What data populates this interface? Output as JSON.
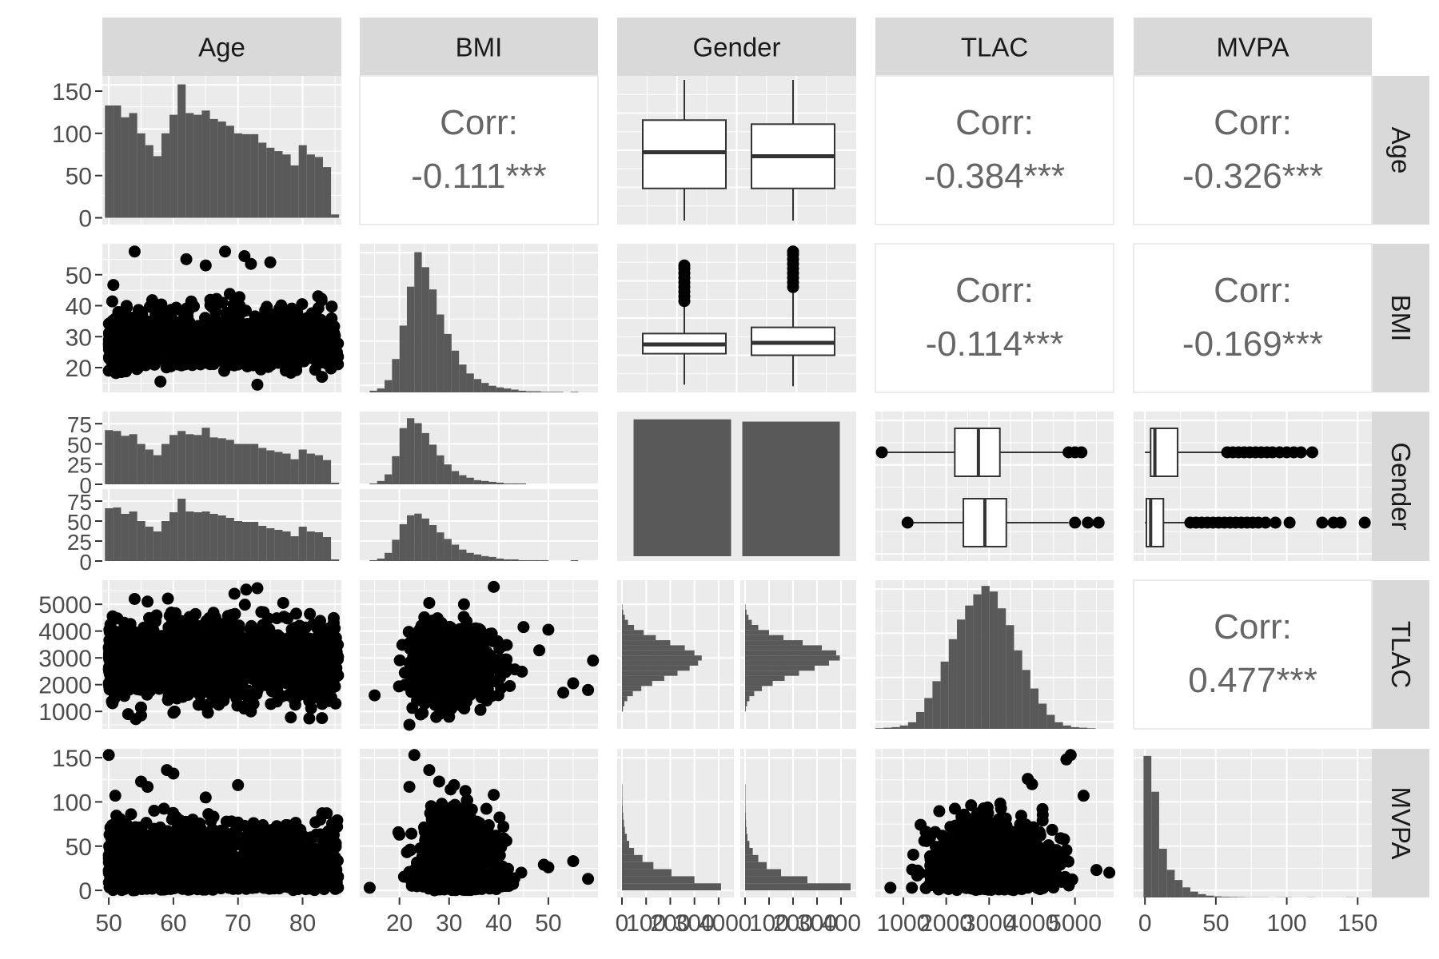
{
  "chart_data": {
    "type": "scatterplot-matrix",
    "variables": [
      "Age",
      "BMI",
      "Gender",
      "TLAC",
      "MVPA"
    ],
    "strip_labels": {
      "columns": [
        "Age",
        "BMI",
        "Gender",
        "TLAC",
        "MVPA"
      ],
      "rows": [
        "Age",
        "BMI",
        "Gender",
        "TLAC",
        "MVPA"
      ]
    },
    "axes": {
      "Age": {
        "range": [
          49,
          86
        ],
        "ticks": [
          "50",
          "60",
          "70",
          "80"
        ],
        "tick_values": [
          50,
          60,
          70,
          80
        ]
      },
      "BMI": {
        "range": [
          12,
          60
        ],
        "ticks": [
          "20",
          "30",
          "40",
          "50"
        ],
        "tick_values": [
          20,
          30,
          40,
          50
        ]
      },
      "TLAC": {
        "range": [
          350,
          5900
        ],
        "ticks": [
          "1000",
          "2000",
          "3000",
          "4000",
          "5000"
        ],
        "tick_values": [
          1000,
          2000,
          3000,
          4000,
          5000
        ]
      },
      "MVPA": {
        "range": [
          -8,
          160
        ],
        "ticks": [
          "0",
          "50",
          "100",
          "150"
        ],
        "tick_values": [
          0,
          50,
          100,
          150
        ]
      },
      "Gender_count_bottom": {
        "range": [
          0,
          450
        ],
        "ticks": [
          "0",
          "100",
          "200",
          "300",
          "400"
        ],
        "tick_values": [
          0,
          100,
          200,
          300,
          400
        ]
      }
    },
    "left_axis_ticks": {
      "Age_row_count": {
        "range": [
          -8,
          168
        ],
        "ticks": [
          "0",
          "50",
          "100",
          "150"
        ],
        "tick_values": [
          0,
          50,
          100,
          150
        ]
      },
      "Gender_row_count": {
        "range": [
          0,
          90
        ],
        "ticks": [
          "0",
          "25",
          "50",
          "75"
        ],
        "tick_values": [
          0,
          25,
          50,
          75
        ]
      }
    },
    "correlations": [
      {
        "row": "Age",
        "col": "BMI",
        "label": "Corr:",
        "value": "-0.111***"
      },
      {
        "row": "Age",
        "col": "TLAC",
        "label": "Corr:",
        "value": "-0.384***"
      },
      {
        "row": "Age",
        "col": "MVPA",
        "label": "Corr:",
        "value": "-0.326***"
      },
      {
        "row": "BMI",
        "col": "TLAC",
        "label": "Corr:",
        "value": "-0.114***"
      },
      {
        "row": "BMI",
        "col": "MVPA",
        "label": "Corr:",
        "value": "-0.169***"
      },
      {
        "row": "TLAC",
        "col": "MVPA",
        "label": "Corr:",
        "value": "0.477***"
      }
    ],
    "histograms": {
      "Age": {
        "start": 49.4,
        "binwidth": 1.25,
        "counts": [
          133,
          133,
          119,
          124,
          100,
          86,
          73,
          100,
          122,
          158,
          124,
          122,
          127,
          117,
          114,
          109,
          100,
          99,
          99,
          89,
          83,
          79,
          75,
          62,
          86,
          75,
          72,
          60,
          4
        ]
      },
      "BMI": {
        "start": 14,
        "binwidth": 1.5,
        "counts": [
          3,
          7,
          22,
          60,
          120,
          190,
          252,
          225,
          185,
          140,
          105,
          75,
          50,
          34,
          24,
          17,
          12,
          9,
          7,
          5,
          3,
          2,
          2,
          1,
          1,
          1,
          0,
          1,
          0
        ]
      },
      "TLAC": {
        "start": 350,
        "binwidth": 190,
        "counts": [
          1,
          2,
          3,
          6,
          12,
          30,
          55,
          85,
          120,
          160,
          195,
          220,
          240,
          255,
          245,
          215,
          185,
          140,
          105,
          72,
          45,
          25,
          12,
          6,
          3,
          2,
          1
        ]
      },
      "MVPA": {
        "start": -1,
        "binwidth": 5.5,
        "counts": [
          770,
          575,
          265,
          150,
          95,
          55,
          32,
          18,
          10,
          6,
          4,
          3,
          2,
          1,
          1,
          1,
          0,
          1,
          1,
          0,
          0,
          1,
          0,
          0,
          0,
          0,
          1
        ]
      },
      "Age_by_gender": {
        "start": 49.4,
        "binwidth": 1.25,
        "group1": [
          67,
          66,
          60,
          62,
          50,
          43,
          36,
          50,
          61,
          66,
          62,
          61,
          70,
          58,
          57,
          55,
          50,
          50,
          50,
          45,
          42,
          40,
          38,
          31,
          43,
          38,
          36,
          30,
          2
        ],
        "group2": [
          66,
          67,
          59,
          62,
          50,
          43,
          37,
          50,
          61,
          78,
          62,
          61,
          62,
          59,
          57,
          54,
          50,
          49,
          49,
          44,
          41,
          39,
          37,
          31,
          43,
          37,
          36,
          30,
          2
        ]
      },
      "BMI_by_gender": {
        "start": 14,
        "binwidth": 1.5,
        "group1": [
          1,
          4,
          12,
          34,
          68,
          80,
          74,
          62,
          48,
          35,
          24,
          16,
          11,
          8,
          5,
          4,
          3,
          2,
          1,
          1,
          1,
          0,
          0,
          0,
          0,
          0,
          0,
          0,
          0
        ],
        "group2": [
          1,
          3,
          10,
          26,
          45,
          56,
          58,
          52,
          44,
          35,
          27,
          20,
          14,
          10,
          8,
          6,
          5,
          3,
          2,
          2,
          1,
          1,
          1,
          1,
          0,
          0,
          0,
          1,
          0
        ]
      },
      "TLAC_by_gender": {
        "start": 1000,
        "binwidth": 190,
        "group1": [
          4,
          10,
          22,
          45,
          80,
          125,
          175,
          230,
          280,
          315,
          330,
          300,
          260,
          200,
          140,
          90,
          50,
          25,
          12,
          5,
          2
        ],
        "group2": [
          3,
          8,
          18,
          38,
          70,
          115,
          165,
          225,
          290,
          350,
          395,
          380,
          320,
          240,
          160,
          100,
          55,
          28,
          14,
          6,
          2
        ]
      },
      "MVPA_by_gender": {
        "start": 0,
        "binwidth": 8,
        "group1": [
          410,
          300,
          205,
          130,
          85,
          50,
          30,
          20,
          12,
          8,
          5,
          3,
          2,
          1,
          1
        ],
        "group2": [
          440,
          260,
          150,
          90,
          55,
          32,
          18,
          10,
          6,
          4,
          3,
          2,
          1,
          1,
          1
        ]
      }
    },
    "gender_bars": [
      {
        "group": "1",
        "count": 1025
      },
      {
        "group": "2",
        "count": 1008
      }
    ],
    "boxplots": {
      "Age_by_gender": [
        {
          "group": "1",
          "min": 50,
          "q1": 58,
          "median": 67,
          "q3": 75,
          "max": 85
        },
        {
          "group": "2",
          "min": 50,
          "q1": 58,
          "median": 66,
          "q3": 74,
          "max": 85
        }
      ],
      "BMI_by_gender": [
        {
          "group": "1",
          "min": 14.5,
          "q1": 24.5,
          "median": 27.5,
          "q3": 31,
          "max": 40.5,
          "outliers": [
            41.5,
            43,
            44.5,
            46,
            47.5,
            49,
            50.5,
            52,
            53
          ]
        },
        {
          "group": "2",
          "min": 14,
          "q1": 24,
          "median": 28,
          "q3": 33,
          "max": 45,
          "outliers": [
            46,
            47.5,
            49,
            50.5,
            52,
            53.5,
            55,
            56.5,
            57.5
          ]
        }
      ],
      "TLAC_by_gender": [
        {
          "group": "1",
          "min": 500,
          "q1": 2200,
          "median": 2750,
          "q3": 3250,
          "max": 4750,
          "outliers": [
            500,
            4850,
            5000,
            5150
          ]
        },
        {
          "group": "2",
          "min": 1100,
          "q1": 2400,
          "median": 2900,
          "q3": 3400,
          "max": 4850,
          "outliers": [
            1100,
            5000,
            5300,
            5550
          ]
        }
      ],
      "MVPA_by_gender": [
        {
          "group": "1",
          "min": 0,
          "q1": 4,
          "median": 7,
          "q3": 23,
          "max": 56,
          "outliers": [
            58,
            62,
            66,
            70,
            74,
            78,
            82,
            86,
            90,
            95,
            100,
            105,
            110,
            118
          ]
        },
        {
          "group": "2",
          "min": 0,
          "q1": 1,
          "median": 4,
          "q3": 13,
          "max": 30,
          "outliers": [
            32,
            36,
            40,
            44,
            48,
            52,
            56,
            60,
            64,
            68,
            72,
            76,
            80,
            85,
            92,
            102,
            125,
            133,
            138,
            155
          ]
        }
      ]
    },
    "scatter_pairs": [
      {
        "x": "Age",
        "y": "BMI"
      },
      {
        "x": "Age",
        "y": "TLAC"
      },
      {
        "x": "Age",
        "y": "MVPA"
      },
      {
        "x": "BMI",
        "y": "TLAC"
      },
      {
        "x": "BMI",
        "y": "MVPA"
      },
      {
        "x": "TLAC",
        "y": "MVPA"
      }
    ],
    "scatter_extreme_points": {
      "Age_BMI": [
        [
          54,
          57.5
        ],
        [
          68,
          57.5
        ],
        [
          71,
          56
        ],
        [
          72,
          53.5
        ],
        [
          65,
          53
        ],
        [
          75,
          54
        ],
        [
          62,
          55
        ],
        [
          73,
          14.5
        ],
        [
          58,
          15.5
        ],
        [
          83,
          17
        ],
        [
          50,
          19
        ]
      ],
      "Age_TLAC": [
        [
          73,
          5600
        ],
        [
          77,
          5050
        ],
        [
          79,
          4650
        ],
        [
          54,
          5200
        ],
        [
          56,
          5100
        ],
        [
          83,
          750
        ],
        [
          53,
          900
        ],
        [
          55,
          850
        ],
        [
          72,
          1000
        ],
        [
          60,
          950
        ]
      ],
      "Age_MVPA": [
        [
          50,
          153
        ],
        [
          59,
          136
        ],
        [
          60,
          132
        ],
        [
          55,
          123
        ],
        [
          56,
          117
        ],
        [
          70,
          119
        ],
        [
          51,
          107
        ],
        [
          82,
          77
        ],
        [
          84,
          67
        ],
        [
          65,
          105
        ]
      ],
      "BMI_TLAC": [
        [
          39,
          5650
        ],
        [
          33,
          5000
        ],
        [
          26,
          5050
        ],
        [
          45,
          4150
        ],
        [
          50,
          4050
        ],
        [
          55,
          2050
        ],
        [
          58,
          1800
        ],
        [
          59,
          2900
        ],
        [
          53,
          1700
        ],
        [
          22,
          500
        ],
        [
          30,
          800
        ],
        [
          15,
          1600
        ]
      ],
      "BMI_MVPA": [
        [
          23,
          153
        ],
        [
          26,
          136
        ],
        [
          28,
          123
        ],
        [
          31,
          119
        ],
        [
          39,
          108
        ],
        [
          22,
          117
        ],
        [
          20,
          63
        ],
        [
          50,
          26
        ],
        [
          55,
          33
        ],
        [
          58,
          13
        ],
        [
          14,
          3
        ]
      ],
      "TLAC_MVPA": [
        [
          4900,
          153
        ],
        [
          4800,
          148
        ],
        [
          5200,
          107
        ],
        [
          3900,
          126
        ],
        [
          4000,
          120
        ],
        [
          5500,
          23
        ],
        [
          5800,
          20
        ],
        [
          2500,
          52
        ],
        [
          1200,
          3
        ],
        [
          700,
          3
        ]
      ]
    },
    "grid": true,
    "background": "#ebebeb",
    "strip_background": "#d9d9d9",
    "mark_color": "#000000",
    "bar_color": "#595959",
    "text_color": "#4d4d4d",
    "corr_text_color": "#666666"
  }
}
